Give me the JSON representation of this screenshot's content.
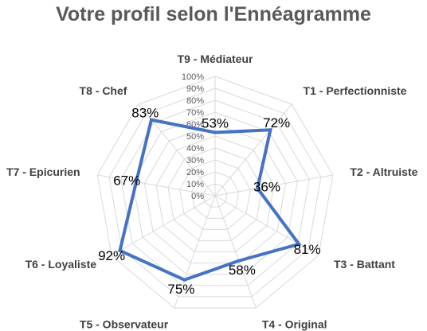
{
  "chart_data": {
    "type": "radar",
    "title": "Votre profil selon l'Ennéagramme",
    "categories": [
      "T9 - Médiateur",
      "T1 - Perfectionniste",
      "T2 - Altruiste",
      "T3 - Battant",
      "T4 - Original",
      "T5 - Observateur",
      "T6 - Loyaliste",
      "T7 - Epicurien",
      "T8 - Chef"
    ],
    "values": [
      53,
      72,
      36,
      81,
      58,
      75,
      92,
      67,
      83
    ],
    "value_labels": [
      "53%",
      "72%",
      "36%",
      "81%",
      "58%",
      "75%",
      "92%",
      "67%",
      "83%"
    ],
    "ticks": [
      "0%",
      "10%",
      "20%",
      "30%",
      "40%",
      "50%",
      "60%",
      "70%",
      "80%",
      "90%",
      "100%"
    ],
    "ylim": [
      0,
      100
    ],
    "grid": true,
    "line_color": "#4472C4",
    "grid_color": "#d9d9d9"
  }
}
